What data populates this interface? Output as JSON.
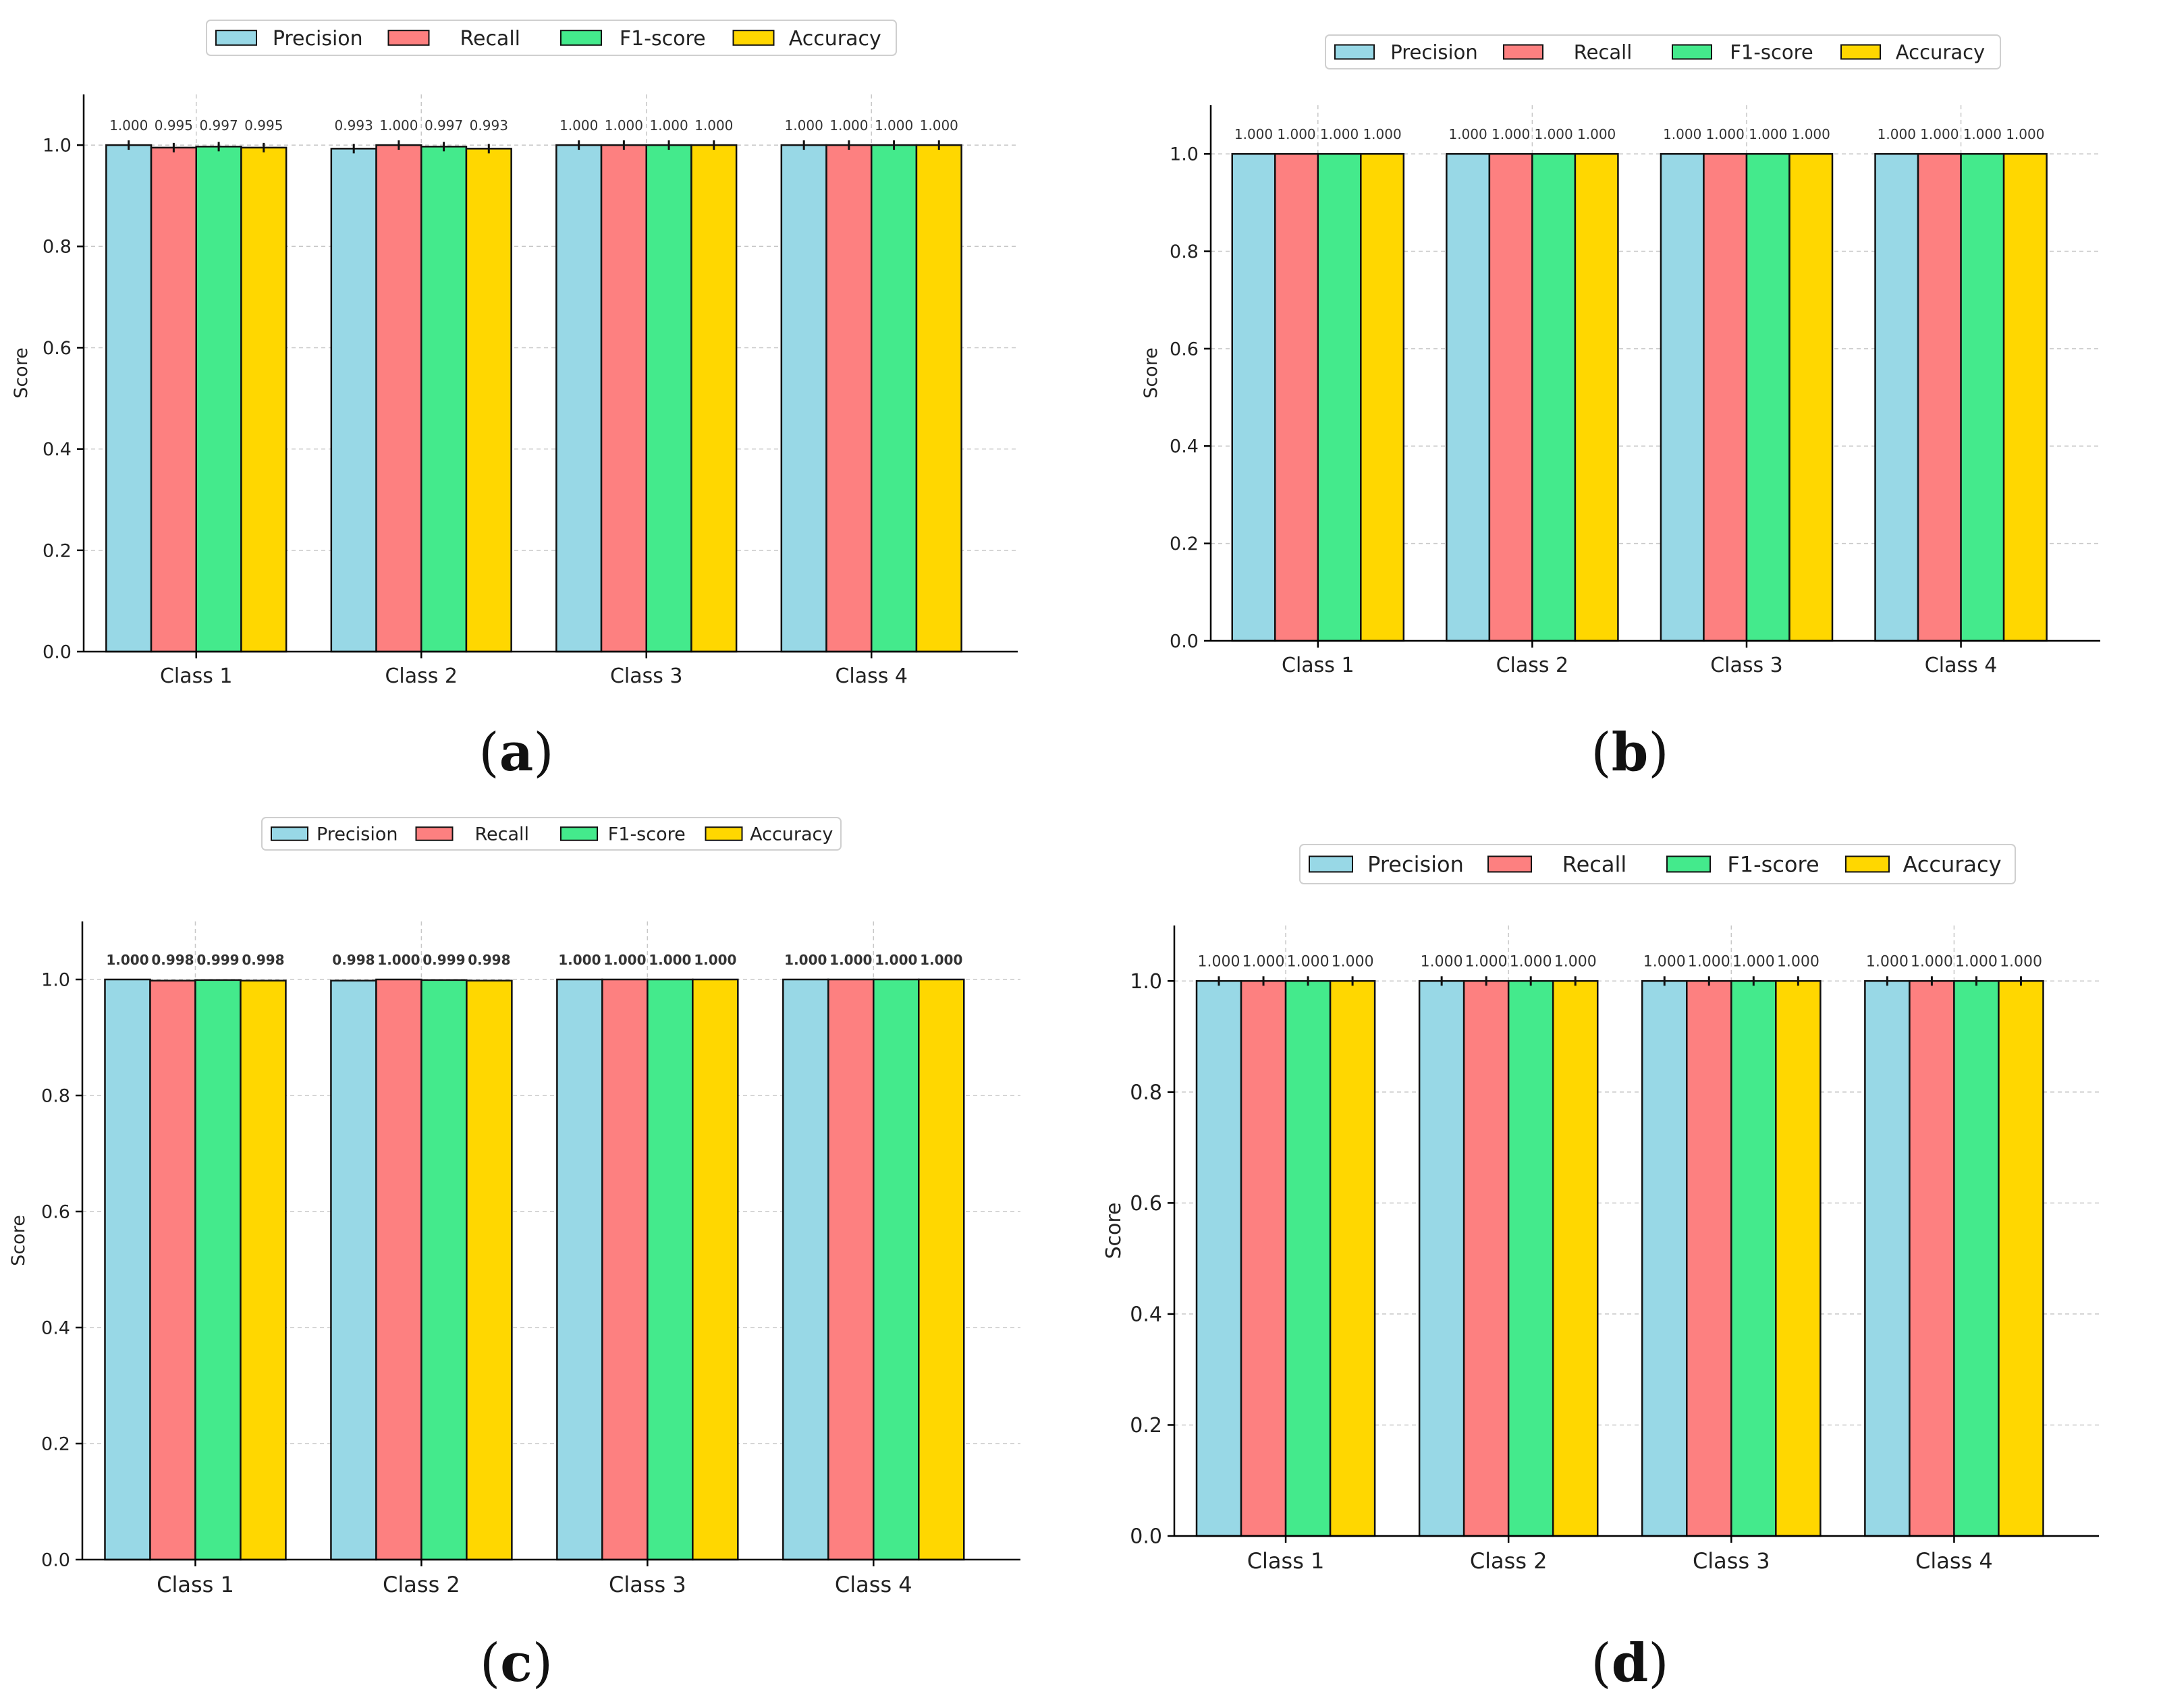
{
  "figure": {
    "captions": [
      "a",
      "b",
      "c",
      "d"
    ]
  },
  "colors": {
    "Precision": "#98d8e6",
    "Recall": "#fd8080",
    "F1-score": "#44ea8c",
    "Accuracy": "#ffd700"
  },
  "chart_data": [
    {
      "panel": "a",
      "type": "bar",
      "title": "",
      "xlabel": "",
      "ylabel": "Score",
      "ylim": [
        0,
        1.1
      ],
      "yticks": [
        "0.0",
        "0.2",
        "0.4",
        "0.6",
        "0.8",
        "1.0"
      ],
      "categories": [
        "Class 1",
        "Class 2",
        "Class 3",
        "Class 4"
      ],
      "legend": [
        "Precision",
        "Recall",
        "F1-score",
        "Accuracy"
      ],
      "legend_position": "top-center",
      "error_bars": true,
      "bold_labels": false,
      "series": [
        {
          "name": "Precision",
          "values": [
            1.0,
            0.993,
            1.0,
            1.0
          ],
          "labels": [
            "1.000",
            "0.993",
            "1.000",
            "1.000"
          ]
        },
        {
          "name": "Recall",
          "values": [
            0.995,
            1.0,
            1.0,
            1.0
          ],
          "labels": [
            "0.995",
            "1.000",
            "1.000",
            "1.000"
          ]
        },
        {
          "name": "F1-score",
          "values": [
            0.997,
            0.997,
            1.0,
            1.0
          ],
          "labels": [
            "0.997",
            "0.997",
            "1.000",
            "1.000"
          ]
        },
        {
          "name": "Accuracy",
          "values": [
            0.995,
            0.993,
            1.0,
            1.0
          ],
          "labels": [
            "0.995",
            "0.993",
            "1.000",
            "1.000"
          ]
        }
      ]
    },
    {
      "panel": "b",
      "type": "bar",
      "title": "",
      "xlabel": "",
      "ylabel": "Score",
      "ylim": [
        0,
        1.1
      ],
      "yticks": [
        "0.0",
        "0.2",
        "0.4",
        "0.6",
        "0.8",
        "1.0"
      ],
      "categories": [
        "Class 1",
        "Class 2",
        "Class 3",
        "Class 4"
      ],
      "legend": [
        "Precision",
        "Recall",
        "F1-score",
        "Accuracy"
      ],
      "legend_position": "top-center",
      "error_bars": false,
      "bold_labels": false,
      "series": [
        {
          "name": "Precision",
          "values": [
            1.0,
            1.0,
            1.0,
            1.0
          ],
          "labels": [
            "1.000",
            "1.000",
            "1.000",
            "1.000"
          ]
        },
        {
          "name": "Recall",
          "values": [
            1.0,
            1.0,
            1.0,
            1.0
          ],
          "labels": [
            "1.000",
            "1.000",
            "1.000",
            "1.000"
          ]
        },
        {
          "name": "F1-score",
          "values": [
            1.0,
            1.0,
            1.0,
            1.0
          ],
          "labels": [
            "1.000",
            "1.000",
            "1.000",
            "1.000"
          ]
        },
        {
          "name": "Accuracy",
          "values": [
            1.0,
            1.0,
            1.0,
            1.0
          ],
          "labels": [
            "1.000",
            "1.000",
            "1.000",
            "1.000"
          ]
        }
      ]
    },
    {
      "panel": "c",
      "type": "bar",
      "title": "",
      "xlabel": "",
      "ylabel": "Score",
      "ylim": [
        0,
        1.1
      ],
      "yticks": [
        "0.0",
        "0.2",
        "0.4",
        "0.6",
        "0.8",
        "1.0"
      ],
      "categories": [
        "Class 1",
        "Class 2",
        "Class 3",
        "Class 4"
      ],
      "legend": [
        "Precision",
        "Recall",
        "F1-score",
        "Accuracy"
      ],
      "legend_position": "top-center",
      "error_bars": false,
      "bold_labels": true,
      "series": [
        {
          "name": "Precision",
          "values": [
            1.0,
            0.998,
            1.0,
            1.0
          ],
          "labels": [
            "1.000",
            "0.998",
            "1.000",
            "1.000"
          ]
        },
        {
          "name": "Recall",
          "values": [
            0.998,
            1.0,
            1.0,
            1.0
          ],
          "labels": [
            "0.998",
            "1.000",
            "1.000",
            "1.000"
          ]
        },
        {
          "name": "F1-score",
          "values": [
            0.999,
            0.999,
            1.0,
            1.0
          ],
          "labels": [
            "0.999",
            "0.999",
            "1.000",
            "1.000"
          ]
        },
        {
          "name": "Accuracy",
          "values": [
            0.998,
            0.998,
            1.0,
            1.0
          ],
          "labels": [
            "0.998",
            "0.998",
            "1.000",
            "1.000"
          ]
        }
      ]
    },
    {
      "panel": "d",
      "type": "bar",
      "title": "",
      "xlabel": "",
      "ylabel": "Score",
      "ylim": [
        0,
        1.1
      ],
      "yticks": [
        "0.0",
        "0.2",
        "0.4",
        "0.6",
        "0.8",
        "1.0"
      ],
      "categories": [
        "Class 1",
        "Class 2",
        "Class 3",
        "Class 4"
      ],
      "legend": [
        "Precision",
        "Recall",
        "F1-score",
        "Accuracy"
      ],
      "legend_position": "top-center",
      "error_bars": true,
      "bold_labels": false,
      "series": [
        {
          "name": "Precision",
          "values": [
            1.0,
            1.0,
            1.0,
            1.0
          ],
          "labels": [
            "1.000",
            "1.000",
            "1.000",
            "1.000"
          ]
        },
        {
          "name": "Recall",
          "values": [
            1.0,
            1.0,
            1.0,
            1.0
          ],
          "labels": [
            "1.000",
            "1.000",
            "1.000",
            "1.000"
          ]
        },
        {
          "name": "F1-score",
          "values": [
            1.0,
            1.0,
            1.0,
            1.0
          ],
          "labels": [
            "1.000",
            "1.000",
            "1.000",
            "1.000"
          ]
        },
        {
          "name": "Accuracy",
          "values": [
            1.0,
            1.0,
            1.0,
            1.0
          ],
          "labels": [
            "1.000",
            "1.000",
            "1.000",
            "1.000"
          ]
        }
      ]
    }
  ]
}
